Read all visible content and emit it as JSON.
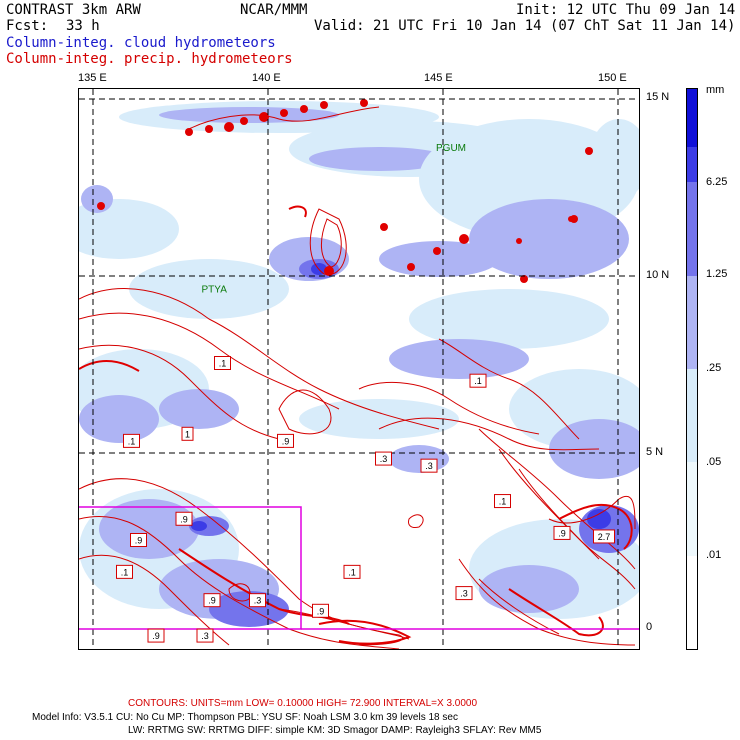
{
  "header": {
    "model_title": "CONTRAST  3km ARW",
    "center": "NCAR/MMM",
    "init": "Init: 12 UTC Thu 09 Jan 14",
    "fcst_label": "Fcst:",
    "fcst_value": "33 h",
    "valid": "Valid: 21 UTC Fri 10 Jan 14 (07 ChT Sat 11 Jan 14)",
    "field1": "Column-integ. cloud hydrometeors",
    "field2": "Column-integ. precip. hydrometeors"
  },
  "map": {
    "lon_labels": [
      "135 E",
      "140 E",
      "145 E",
      "150 E"
    ],
    "lat_labels": [
      "15 N",
      "10 N",
      "5 N",
      "0"
    ],
    "station_labels": [
      {
        "text": "PGUM",
        "lon": 144.8,
        "lat": 13.5
      },
      {
        "text": "PTYA",
        "lon": 138.1,
        "lat": 9.5
      }
    ],
    "contour_labels": [
      {
        "text": ".1",
        "lon": 138.7,
        "lat": 7.5
      },
      {
        "text": ".1",
        "lon": 146.0,
        "lat": 7.0
      },
      {
        "text": ".1",
        "lon": 136.1,
        "lat": 5.3
      },
      {
        "text": "1",
        "lon": 137.7,
        "lat": 5.5
      },
      {
        "text": ".9",
        "lon": 140.5,
        "lat": 5.3
      },
      {
        "text": ".3",
        "lon": 143.3,
        "lat": 4.8
      },
      {
        "text": ".3",
        "lon": 144.6,
        "lat": 4.6
      },
      {
        "text": ".9",
        "lon": 137.6,
        "lat": 3.1
      },
      {
        "text": ".1",
        "lon": 146.7,
        "lat": 3.6
      },
      {
        "text": ".9",
        "lon": 148.4,
        "lat": 2.7
      },
      {
        "text": "2.7",
        "lon": 149.6,
        "lat": 2.6
      },
      {
        "text": ".9",
        "lon": 136.3,
        "lat": 2.5
      },
      {
        "text": ".1",
        "lon": 135.9,
        "lat": 1.6
      },
      {
        "text": ".1",
        "lon": 142.4,
        "lat": 1.6
      },
      {
        "text": ".3",
        "lon": 145.6,
        "lat": 1.0
      },
      {
        "text": ".9",
        "lon": 138.4,
        "lat": 0.8
      },
      {
        "text": ".3",
        "lon": 139.7,
        "lat": 0.8
      },
      {
        "text": ".9",
        "lon": 141.5,
        "lat": 0.5
      },
      {
        "text": ".9",
        "lon": 136.8,
        "lat": -0.2
      },
      {
        "text": ".3",
        "lon": 138.2,
        "lat": -0.2
      }
    ]
  },
  "colorbar": {
    "unit": "mm",
    "labels": [
      "6.25",
      "1.25",
      ".25",
      ".05",
      ".01"
    ],
    "colors": [
      "#1010d8",
      "#3c3ce6",
      "#7474ec",
      "#aeb4f4",
      "#d8ecfa",
      "#eef8fc",
      "#ffffff"
    ]
  },
  "footer": {
    "contours_line": "CONTOURS:  UNITS=mm  LOW= 0.10000       HIGH=  72.900        INTERVAL=X  3.0000",
    "model_info1": "Model Info: V3.5.1      CU: No Cu      MP: Thompson      PBL: YSU        SF: Noah LSM      3.0 km   39 levels    18 sec",
    "model_info2": "LW: RRTMG     SW: RRTMG    DIFF: simple KM: 3D Smagor DAMP: Rayleigh3   SFLAY: Rev MM5"
  }
}
